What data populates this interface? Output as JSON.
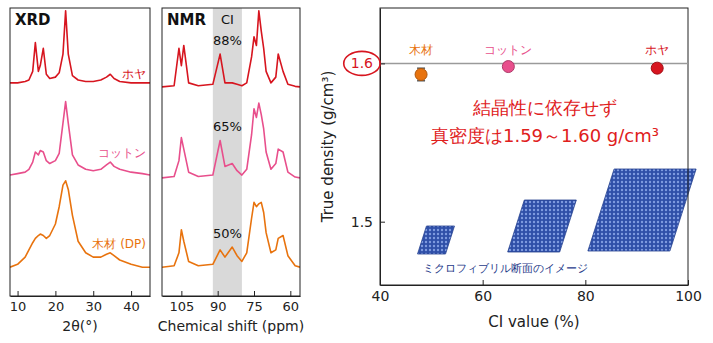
{
  "chart_data": [
    {
      "type": "line",
      "title": "XRD",
      "x_label": "2θ(°)",
      "x": [
        8,
        10,
        12,
        13,
        14,
        14.7,
        15.5,
        16,
        16.8,
        17.6,
        18.5,
        20,
        21,
        22,
        22.7,
        23.4,
        24.5,
        26,
        28,
        30,
        32,
        33.5,
        34.5,
        35.5,
        37,
        40,
        43,
        45
      ],
      "xlim": [
        8,
        45
      ],
      "xticks": [
        10,
        20,
        30,
        40
      ],
      "ylim": [
        0,
        100
      ],
      "tick_labels": "x",
      "series": [
        {
          "name": "ホヤ",
          "color": "#d7151f",
          "values": [
            74,
            74,
            74.5,
            75,
            78,
            88,
            78,
            80,
            86,
            77,
            75.5,
            76,
            77.5,
            84,
            99,
            84,
            76.5,
            75,
            74.5,
            74.5,
            75,
            76,
            77,
            75.5,
            74.5,
            74,
            74,
            74
          ]
        },
        {
          "name": "コットン",
          "color": "#e84f8c",
          "values": [
            42,
            42.5,
            43,
            44,
            46.5,
            50,
            49,
            50.5,
            50,
            47,
            46,
            47,
            49.5,
            60,
            67.5,
            60,
            49,
            45.5,
            44,
            43.5,
            44,
            45.5,
            46.5,
            45,
            44,
            43,
            42.5,
            42
          ]
        },
        {
          "name": "木材 (DP)",
          "color": "#e8730e",
          "values": [
            10,
            11,
            13.5,
            16,
            18.5,
            20,
            21,
            21.5,
            21,
            20,
            21,
            25,
            31,
            38.5,
            40,
            37,
            28,
            19,
            15,
            13.5,
            13.5,
            14.5,
            15,
            14,
            12.5,
            11,
            10,
            10
          ]
        }
      ]
    },
    {
      "type": "line",
      "title": "NMR",
      "x_label": "Chemical shift (ppm)",
      "x": [
        113,
        108,
        106,
        105,
        104,
        102,
        98,
        92,
        89,
        87,
        84,
        82,
        80,
        78,
        76,
        75,
        74,
        73,
        72,
        71,
        70,
        68,
        66,
        65,
        63,
        61,
        58,
        56
      ],
      "xlim": [
        113,
        56
      ],
      "xticks": [
        105,
        90,
        75,
        60
      ],
      "ylim": [
        0,
        100
      ],
      "tick_labels": "x",
      "band": {
        "label": "CI",
        "range": [
          92,
          80
        ]
      },
      "series": [
        {
          "color": "#d7151f",
          "ci_label": "88%",
          "values": [
            72.6,
            73,
            86,
            80,
            87,
            74,
            73,
            73.5,
            84,
            74,
            74,
            73.5,
            73,
            74,
            83,
            90,
            87,
            99,
            92,
            86,
            78,
            74,
            76,
            84,
            78,
            73.5,
            72.8,
            72.6
          ]
        },
        {
          "color": "#e84f8c",
          "ci_label": "65%",
          "values": [
            41,
            41.5,
            47,
            55,
            51,
            43,
            41.5,
            42,
            54,
            45,
            46,
            43.5,
            42,
            44,
            56,
            65,
            62,
            67,
            63,
            58,
            50,
            44,
            46,
            51,
            50,
            43,
            41.3,
            41
          ]
        },
        {
          "color": "#e8730e",
          "ci_label": "50%",
          "values": [
            10,
            10.5,
            15,
            23,
            19,
            12,
            10.5,
            11,
            16,
            13.5,
            17,
            14,
            12,
            15,
            27,
            32.5,
            31,
            32,
            32.5,
            29,
            22,
            15,
            16,
            20,
            21,
            14,
            10.5,
            10
          ]
        }
      ]
    },
    {
      "type": "scatter",
      "x_label": "CI value (%)",
      "y_label": "True density (g/cm³)",
      "xlim": [
        40,
        100
      ],
      "xticks": [
        40,
        60,
        80,
        100
      ],
      "ylim": [
        1.46,
        1.635
      ],
      "yticks": [
        1.5,
        1.6
      ],
      "reference_line": 1.6,
      "labels": [
        "木材",
        "コットン",
        "ホヤ"
      ],
      "x": [
        48,
        65,
        94
      ],
      "values": [
        1.593,
        1.598,
        1.597
      ],
      "errors": [
        0.004,
        0.001,
        0.002
      ],
      "colors": [
        "#e8730e",
        "#e84f8c",
        "#d7151f"
      ],
      "annotations": [
        "結晶性に依存せず",
        "真密度は1.59～1.60 g/cm³"
      ],
      "caption": "ミクロフィブリル断面のイメージ"
    }
  ]
}
